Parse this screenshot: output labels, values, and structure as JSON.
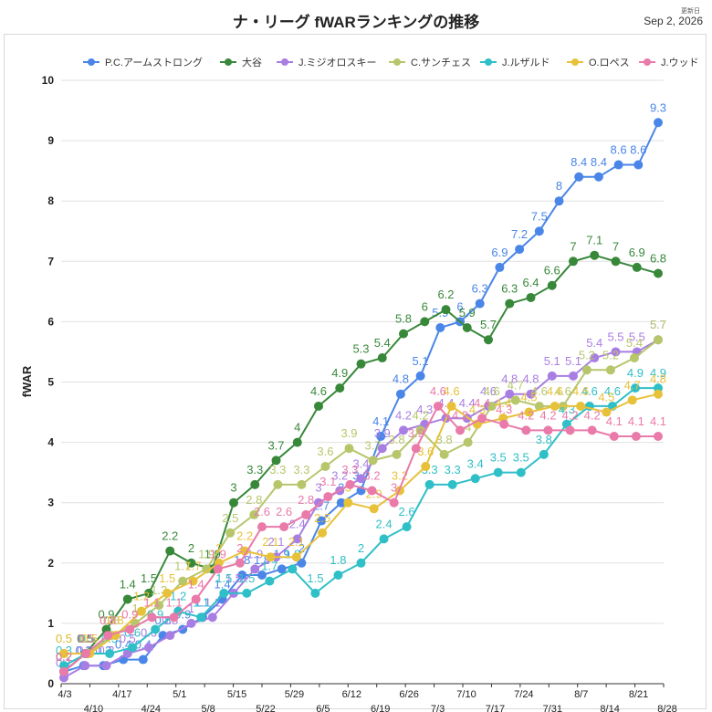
{
  "title": "ナ・リーグ fWARランキングの推移",
  "update": {
    "label": "更新日",
    "date": "Sep 2, 2026"
  },
  "chart_data": {
    "type": "line",
    "title": "ナ・リーグ fWARランキングの推移",
    "ylabel": "fWAR",
    "xlabel": "",
    "ylim": [
      0,
      10
    ],
    "yticks": [
      0,
      1,
      2,
      3,
      4,
      5,
      6,
      7,
      8,
      9,
      10
    ],
    "grid": true,
    "legend": "top",
    "x_tick_labels": [
      "4/3",
      "4/10",
      "4/17",
      "4/24",
      "5/1",
      "5/8",
      "5/15",
      "5/22",
      "5/29",
      "6/5",
      "6/12",
      "6/19",
      "6/26",
      "7/3",
      "7/10",
      "7/17",
      "7/24",
      "7/31",
      "8/7",
      "8/14",
      "8/21",
      "8/28"
    ],
    "series": [
      {
        "name": "P.C.アームストロング",
        "color": "#4a86e8",
        "values": [
          0.2,
          0.3,
          0.3,
          0.4,
          0.4,
          0.8,
          0.9,
          1.1,
          1.4,
          1.8,
          1.8,
          1.9,
          2,
          2.7,
          3,
          3.2,
          4.1,
          4.8,
          5.1,
          5.9,
          6,
          6.3,
          6.9,
          7.2,
          7.5,
          8,
          8.4,
          8.4,
          8.6,
          8.6,
          9.3
        ]
      },
      {
        "name": "大谷",
        "color": "#38883a",
        "values": [
          0.2,
          0.5,
          0.9,
          1.4,
          1.5,
          2.2,
          2,
          1.9,
          3,
          3.3,
          3.7,
          4,
          4.6,
          4.9,
          5.3,
          5.4,
          5.8,
          6,
          6.2,
          5.9,
          5.7,
          6.3,
          6.4,
          6.6,
          7,
          7.1,
          7,
          6.9,
          6.8
        ]
      },
      {
        "name": "J.ミジオロスキー",
        "color": "#a97ee3",
        "values": [
          0.1,
          0.3,
          0.3,
          0.5,
          0.6,
          0.8,
          1,
          1.1,
          1.5,
          1.9,
          2.1,
          2.4,
          3,
          3.2,
          3.4,
          3.9,
          4.2,
          4.3,
          4.4,
          4.4,
          4.6,
          4.8,
          4.8,
          5.1,
          5.1,
          5.4,
          5.5,
          5.5,
          5.7
        ]
      },
      {
        "name": "C.サンチェス",
        "color": "#b7c66b",
        "values": [
          0.5,
          0.5,
          0.8,
          1,
          1.3,
          1.7,
          1.9,
          2.5,
          2.8,
          3.3,
          3.3,
          3.6,
          3.9,
          3.7,
          3.8,
          4.2,
          3.8,
          4,
          4.6,
          4.7,
          4.6,
          4.6,
          5.2,
          5.2,
          5.4,
          5.7
        ]
      },
      {
        "name": "J.ルザルド",
        "color": "#2fbfc7",
        "values": [
          0.3,
          0.5,
          0.5,
          0.6,
          0.9,
          1.2,
          1.1,
          1.5,
          1.5,
          1.7,
          1.9,
          1.5,
          1.8,
          2,
          2.4,
          2.6,
          3.3,
          3.3,
          3.4,
          3.5,
          3.5,
          3.8,
          4.3,
          4.6,
          4.6,
          4.9,
          4.9
        ]
      },
      {
        "name": "O.ロペス",
        "color": "#e8c13a",
        "values": [
          0.5,
          0.5,
          0.8,
          1.2,
          1.5,
          1.7,
          2,
          2.2,
          2.1,
          2.1,
          2.5,
          3,
          2.9,
          3.2,
          3.6,
          4.6,
          4.3,
          4.4,
          4.5,
          4.6,
          4.6,
          4.5,
          4.7,
          4.8
        ]
      },
      {
        "name": "J.ウッド",
        "color": "#e97aa9",
        "values": [
          0.2,
          0.5,
          0.8,
          0.9,
          1.1,
          1.1,
          1.4,
          1.9,
          2,
          2.6,
          2.6,
          2.8,
          3.1,
          3.3,
          3.2,
          3,
          3.9,
          4.6,
          4.2,
          4.4,
          4.3,
          4.2,
          4.2,
          4.2,
          4.2,
          4.1,
          4.1,
          4.1
        ]
      }
    ]
  }
}
